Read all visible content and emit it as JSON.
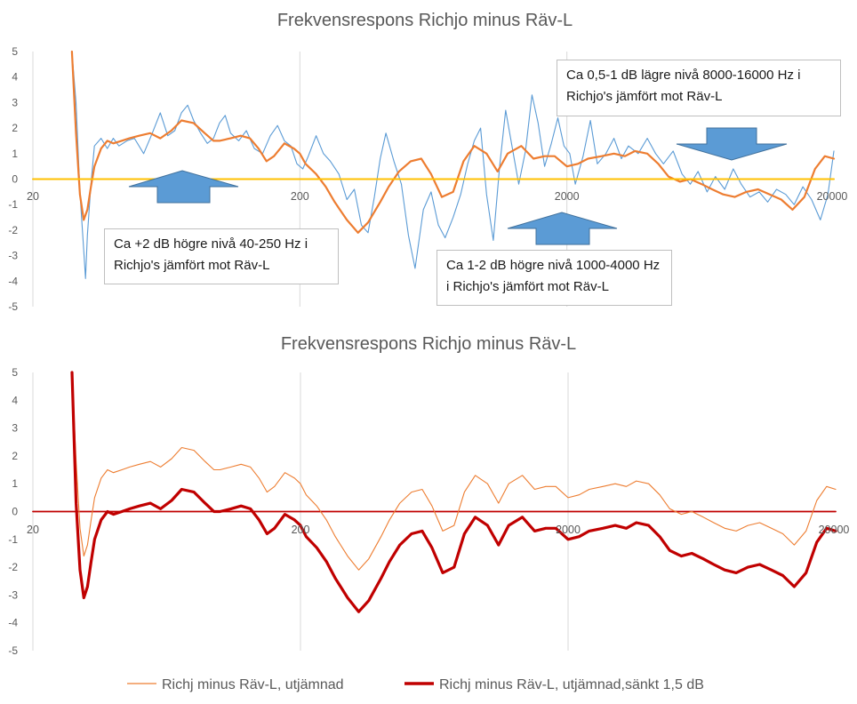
{
  "colors": {
    "raw_line": "#5b9bd5",
    "smooth_line": "#ed7d31",
    "zero_line": "#ffc000",
    "lowered_line": "#c00000",
    "zero_line_bottom": "#c00000",
    "arrow_fill": "#5b9bd5",
    "arrow_stroke": "#41719c"
  },
  "annotations": {
    "top_right": "Ca 0,5-1 dB lägre nivå 8000-16000 Hz i Richjo's jämfört mot Räv-L",
    "left": "Ca +2 dB högre nivå 40-250 Hz i Richjo's jämfört mot Räv-L",
    "middle": "Ca 1-2 dB högre nivå 1000-4000 Hz i Richjo's jämfört mot Räv-L"
  },
  "chart_data": [
    {
      "type": "line",
      "title": "Frekvensrespons Richjo minus Räv-L",
      "xscale": "log",
      "xlim": [
        20,
        20000
      ],
      "ylim": [
        -5,
        5
      ],
      "x_ticks": [
        "20",
        "200",
        "2000",
        "20000"
      ],
      "y_ticks": [
        "5",
        "4",
        "3",
        "2",
        "1",
        "0",
        "-1",
        "-2",
        "-3",
        "-4",
        "-5"
      ],
      "legend": "none",
      "series": [
        {
          "x": [
            28,
            29,
            30,
            31,
            32,
            33,
            34,
            36,
            38,
            40,
            43,
            46,
            50,
            55,
            60,
            66,
            72,
            80,
            88,
            95,
            100,
            110,
            120,
            130,
            140,
            150,
            160,
            175,
            190,
            200,
            210,
            230,
            250,
            270,
            300,
            330,
            360,
            400,
            430,
            470,
            520,
            570,
            620,
            680,
            750,
            820,
            900,
            1000,
            1100,
            1200,
            1350,
            1500,
            1650,
            1800,
            2000,
            2200,
            2400,
            2700,
            3000,
            3300,
            3600,
            4000,
            4400,
            4800,
            5300,
            5800,
            6400,
            7000,
            7700,
            8500,
            9400,
            10400,
            11500,
            12700,
            14000,
            15500,
            17000,
            18500,
            20000
          ],
          "y": [
            5.0,
            1.8,
            -0.6,
            -1.6,
            -1.2,
            -0.3,
            0.5,
            1.2,
            1.5,
            1.4,
            1.5,
            1.6,
            1.7,
            1.8,
            1.6,
            1.9,
            2.3,
            2.2,
            1.8,
            1.5,
            1.5,
            1.6,
            1.7,
            1.6,
            1.2,
            0.7,
            0.9,
            1.4,
            1.2,
            1.0,
            0.6,
            0.2,
            -0.3,
            -0.9,
            -1.6,
            -2.1,
            -1.7,
            -0.9,
            -0.3,
            0.3,
            0.7,
            0.8,
            0.2,
            -0.7,
            -0.5,
            0.7,
            1.3,
            1.0,
            0.3,
            1.0,
            1.3,
            0.8,
            0.9,
            0.9,
            0.5,
            0.6,
            0.8,
            0.9,
            1.0,
            0.9,
            1.1,
            1.0,
            0.6,
            0.1,
            -0.1,
            0.0,
            -0.2,
            -0.4,
            -0.6,
            -0.7,
            -0.5,
            -0.4,
            -0.6,
            -0.8,
            -1.2,
            -0.7,
            0.4,
            0.9,
            0.8
          ]
        },
        {
          "x": [
            28,
            29,
            30,
            31,
            31.5,
            32,
            33,
            34,
            36,
            38,
            40,
            42,
            45,
            48,
            52,
            56,
            60,
            64,
            68,
            72,
            76,
            80,
            85,
            90,
            95,
            100,
            105,
            110,
            118,
            126,
            135,
            145,
            155,
            165,
            175,
            185,
            195,
            205,
            215,
            230,
            245,
            260,
            280,
            300,
            320,
            340,
            360,
            380,
            400,
            420,
            450,
            480,
            510,
            540,
            580,
            620,
            660,
            700,
            750,
            800,
            850,
            900,
            950,
            1000,
            1060,
            1120,
            1180,
            1250,
            1320,
            1400,
            1480,
            1560,
            1650,
            1750,
            1850,
            1950,
            2050,
            2150,
            2300,
            2450,
            2600,
            2800,
            3000,
            3200,
            3400,
            3700,
            4000,
            4300,
            4600,
            5000,
            5400,
            5800,
            6200,
            6700,
            7200,
            7800,
            8400,
            9000,
            9700,
            10500,
            11300,
            12200,
            13200,
            14200,
            15300,
            16500,
            17800,
            19000,
            20000
          ],
          "y": [
            5.0,
            3.0,
            -0.5,
            -2.8,
            -3.9,
            -2.2,
            -0.2,
            1.3,
            1.6,
            1.2,
            1.6,
            1.3,
            1.5,
            1.6,
            1.0,
            1.8,
            2.6,
            1.7,
            1.9,
            2.6,
            2.9,
            2.3,
            1.8,
            1.4,
            1.6,
            2.2,
            2.5,
            1.8,
            1.5,
            1.9,
            1.2,
            1.0,
            1.7,
            2.1,
            1.5,
            1.3,
            0.6,
            0.4,
            0.9,
            1.7,
            1.0,
            0.7,
            0.2,
            -0.8,
            -0.4,
            -1.8,
            -2.1,
            -0.7,
            0.8,
            1.8,
            0.7,
            -0.2,
            -2.2,
            -3.5,
            -1.2,
            -0.5,
            -1.8,
            -2.3,
            -1.5,
            -0.6,
            0.6,
            1.5,
            2.0,
            -0.6,
            -2.4,
            0.5,
            2.7,
            1.2,
            -0.2,
            1.1,
            3.3,
            2.2,
            0.5,
            1.4,
            2.4,
            1.3,
            1.0,
            -0.2,
            0.9,
            2.3,
            0.6,
            1.0,
            1.6,
            0.8,
            1.3,
            1.0,
            1.6,
            1.0,
            0.6,
            1.1,
            0.2,
            -0.2,
            0.3,
            -0.5,
            0.1,
            -0.4,
            0.4,
            -0.2,
            -0.7,
            -0.5,
            -0.9,
            -0.4,
            -0.6,
            -1.0,
            -0.3,
            -0.8,
            -1.6,
            -0.6,
            1.1
          ]
        },
        {
          "x": [
            20,
            20000
          ],
          "y": [
            0,
            0
          ]
        }
      ]
    },
    {
      "type": "line",
      "title": "Frekvensrespons Richjo minus Räv-L",
      "xscale": "log",
      "xlim": [
        20,
        20000
      ],
      "ylim": [
        -5,
        5
      ],
      "x_ticks": [
        "20",
        "200",
        "2000",
        "20000"
      ],
      "y_ticks": [
        "5",
        "4",
        "3",
        "2",
        "1",
        "0",
        "-1",
        "-2",
        "-3",
        "-4",
        "-5"
      ],
      "legend": "bottom",
      "series": [
        {
          "name": "Richj minus Räv-L, utjämnad",
          "x": [
            28,
            29,
            30,
            31,
            32,
            33,
            34,
            36,
            38,
            40,
            43,
            46,
            50,
            55,
            60,
            66,
            72,
            80,
            88,
            95,
            100,
            110,
            120,
            130,
            140,
            150,
            160,
            175,
            190,
            200,
            210,
            230,
            250,
            270,
            300,
            330,
            360,
            400,
            430,
            470,
            520,
            570,
            620,
            680,
            750,
            820,
            900,
            1000,
            1100,
            1200,
            1350,
            1500,
            1650,
            1800,
            2000,
            2200,
            2400,
            2700,
            3000,
            3300,
            3600,
            4000,
            4400,
            4800,
            5300,
            5800,
            6400,
            7000,
            7700,
            8500,
            9400,
            10400,
            11500,
            12700,
            14000,
            15500,
            17000,
            18500,
            20000
          ],
          "y": [
            5.0,
            1.8,
            -0.6,
            -1.6,
            -1.2,
            -0.3,
            0.5,
            1.2,
            1.5,
            1.4,
            1.5,
            1.6,
            1.7,
            1.8,
            1.6,
            1.9,
            2.3,
            2.2,
            1.8,
            1.5,
            1.5,
            1.6,
            1.7,
            1.6,
            1.2,
            0.7,
            0.9,
            1.4,
            1.2,
            1.0,
            0.6,
            0.2,
            -0.3,
            -0.9,
            -1.6,
            -2.1,
            -1.7,
            -0.9,
            -0.3,
            0.3,
            0.7,
            0.8,
            0.2,
            -0.7,
            -0.5,
            0.7,
            1.3,
            1.0,
            0.3,
            1.0,
            1.3,
            0.8,
            0.9,
            0.9,
            0.5,
            0.6,
            0.8,
            0.9,
            1.0,
            0.9,
            1.1,
            1.0,
            0.6,
            0.1,
            -0.1,
            0.0,
            -0.2,
            -0.4,
            -0.6,
            -0.7,
            -0.5,
            -0.4,
            -0.6,
            -0.8,
            -1.2,
            -0.7,
            0.4,
            0.9,
            0.8
          ]
        },
        {
          "name": "Richj minus Räv-L, utjämnad,sänkt 1,5 dB",
          "x": [
            28,
            29,
            30,
            31,
            32,
            33,
            34,
            36,
            38,
            40,
            43,
            46,
            50,
            55,
            60,
            66,
            72,
            80,
            88,
            95,
            100,
            110,
            120,
            130,
            140,
            150,
            160,
            175,
            190,
            200,
            210,
            230,
            250,
            270,
            300,
            330,
            360,
            400,
            430,
            470,
            520,
            570,
            620,
            680,
            750,
            820,
            900,
            1000,
            1100,
            1200,
            1350,
            1500,
            1650,
            1800,
            2000,
            2200,
            2400,
            2700,
            3000,
            3300,
            3600,
            4000,
            4400,
            4800,
            5300,
            5800,
            6400,
            7000,
            7700,
            8500,
            9400,
            10400,
            11500,
            12700,
            14000,
            15500,
            17000,
            18500,
            20000
          ],
          "y": [
            5.0,
            0.3,
            -2.1,
            -3.1,
            -2.7,
            -1.8,
            -1.0,
            -0.3,
            0.0,
            -0.1,
            0.0,
            0.1,
            0.2,
            0.3,
            0.1,
            0.4,
            0.8,
            0.7,
            0.3,
            0.0,
            0.0,
            0.1,
            0.2,
            0.1,
            -0.3,
            -0.8,
            -0.6,
            -0.1,
            -0.3,
            -0.5,
            -0.9,
            -1.3,
            -1.8,
            -2.4,
            -3.1,
            -3.6,
            -3.2,
            -2.4,
            -1.8,
            -1.2,
            -0.8,
            -0.7,
            -1.3,
            -2.2,
            -2.0,
            -0.8,
            -0.2,
            -0.5,
            -1.2,
            -0.5,
            -0.2,
            -0.7,
            -0.6,
            -0.6,
            -1.0,
            -0.9,
            -0.7,
            -0.6,
            -0.5,
            -0.6,
            -0.4,
            -0.5,
            -0.9,
            -1.4,
            -1.6,
            -1.5,
            -1.7,
            -1.9,
            -2.1,
            -2.2,
            -2.0,
            -1.9,
            -2.1,
            -2.3,
            -2.7,
            -2.2,
            -1.1,
            -0.6,
            -0.7
          ]
        },
        {
          "x": [
            20,
            20000
          ],
          "y": [
            0,
            0
          ]
        }
      ]
    }
  ]
}
